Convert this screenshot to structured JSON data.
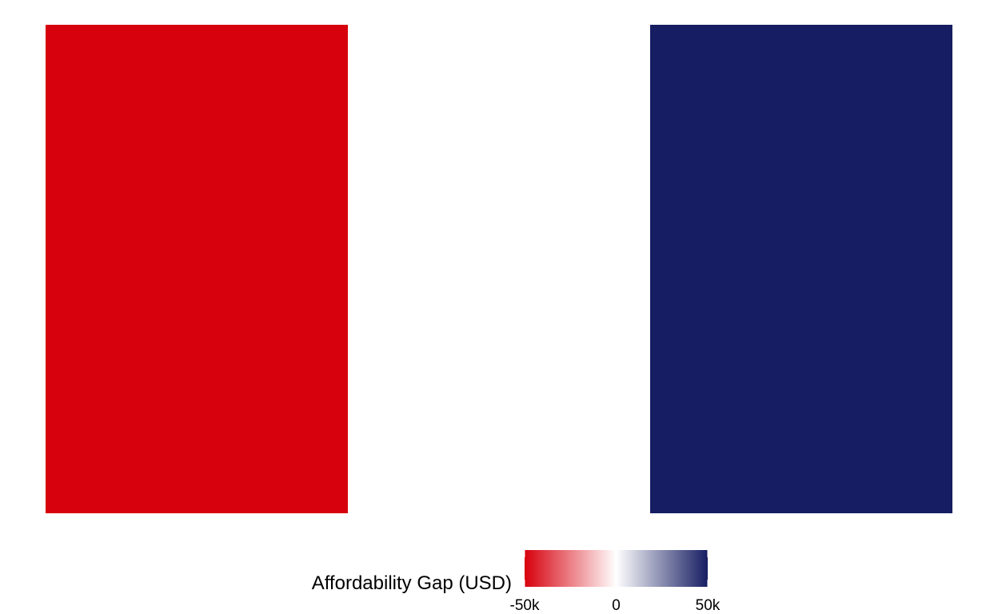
{
  "chart_data": {
    "type": "heatmap",
    "title": "",
    "xlabel": "",
    "ylabel": "",
    "grid": false,
    "legend_position": "bottom",
    "tiles": [
      {
        "column": 1,
        "value": -50000
      },
      {
        "column": 2,
        "value": 0
      },
      {
        "column": 3,
        "value": 50000
      }
    ],
    "color_scale": {
      "title": "Affordability Gap (USD)",
      "min": -50000,
      "max": 50000,
      "low_color": "#d7000d",
      "mid_color": "#ffffff",
      "high_color": "#161d62",
      "ticks": [
        -50000,
        0,
        50000
      ],
      "tick_labels": [
        "-50k",
        "0",
        "50k"
      ]
    }
  }
}
